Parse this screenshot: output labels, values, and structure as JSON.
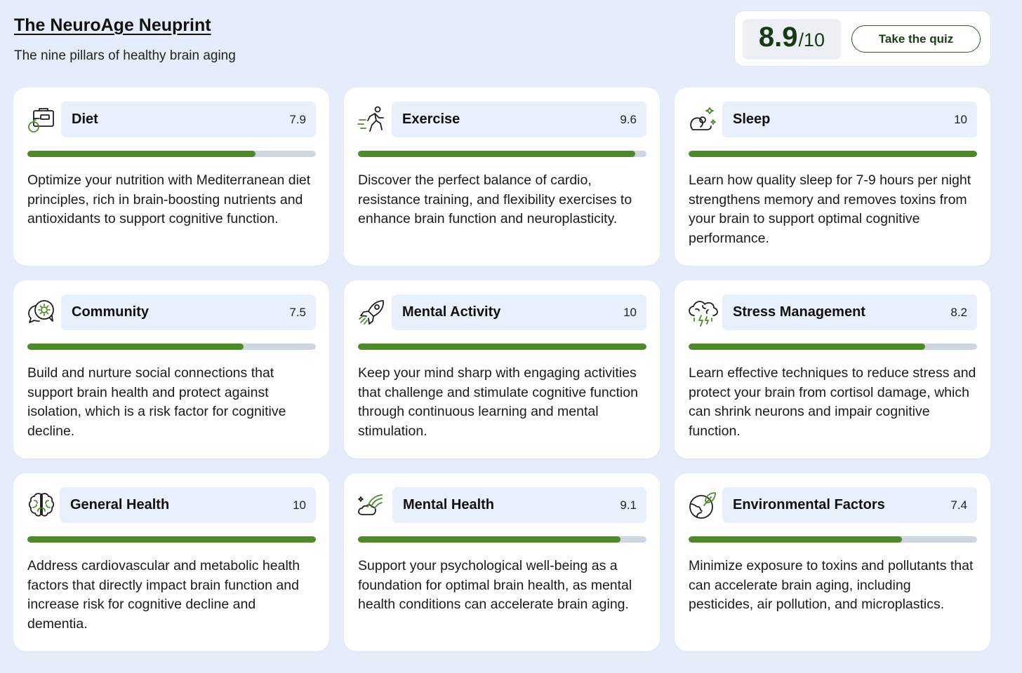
{
  "header": {
    "title": "The NeuroAge Neuprint",
    "subtitle": "The nine pillars of healthy brain aging"
  },
  "overall": {
    "score": "8.9",
    "denominator": "/10",
    "quiz_label": "Take the quiz"
  },
  "colors": {
    "background": "#e6edfa",
    "accent_green": "#4e8a2a",
    "pill_bg": "#e8f0fc",
    "track": "#cfd6df"
  },
  "pillars": [
    {
      "name": "Diet",
      "score": "7.9",
      "fraction": 0.79,
      "icon": "lunchbox-apple-icon",
      "description": "Optimize your nutrition with Mediterranean diet principles, rich in brain-boosting nutrients and antioxidants to support cognitive function."
    },
    {
      "name": "Exercise",
      "score": "9.6",
      "fraction": 0.96,
      "icon": "runner-icon",
      "description": "Discover the perfect balance of cardio, resistance training, and flexibility exercises to enhance brain function and neuroplasticity."
    },
    {
      "name": "Sleep",
      "score": "10",
      "fraction": 1.0,
      "icon": "sleeping-person-icon",
      "description": "Learn how quality sleep for 7-9 hours per night strengthens memory and removes toxins from your brain to support optimal cognitive performance."
    },
    {
      "name": "Community",
      "score": "7.5",
      "fraction": 0.75,
      "icon": "chat-bubbles-icon",
      "description": "Build and nurture social connections that support brain health and protect against isolation, which is a risk factor for cognitive decline."
    },
    {
      "name": "Mental Activity",
      "score": "10",
      "fraction": 1.0,
      "icon": "rocket-icon",
      "description": "Keep your mind sharp with engaging activities that challenge and stimulate cognitive function through continuous learning and mental stimulation."
    },
    {
      "name": "Stress Management",
      "score": "8.2",
      "fraction": 0.82,
      "icon": "storm-brain-icon",
      "description": "Learn effective techniques to reduce stress and protect your brain from cortisol damage, which can shrink neurons and impair cognitive function."
    },
    {
      "name": "General Health",
      "score": "10",
      "fraction": 1.0,
      "icon": "brain-icon",
      "description": "Address cardiovascular and metabolic health factors that directly impact brain function and increase risk for cognitive decline and dementia."
    },
    {
      "name": "Mental Health",
      "score": "9.1",
      "fraction": 0.91,
      "icon": "rainbow-cloud-icon",
      "description": "Support your psychological well-being as a foundation for optimal brain health, as mental health conditions can accelerate brain aging."
    },
    {
      "name": "Environmental Factors",
      "score": "7.4",
      "fraction": 0.74,
      "icon": "globe-leaf-icon",
      "description": "Minimize exposure to toxins and pollutants that can accelerate brain aging, including pesticides, air pollution, and microplastics."
    }
  ]
}
